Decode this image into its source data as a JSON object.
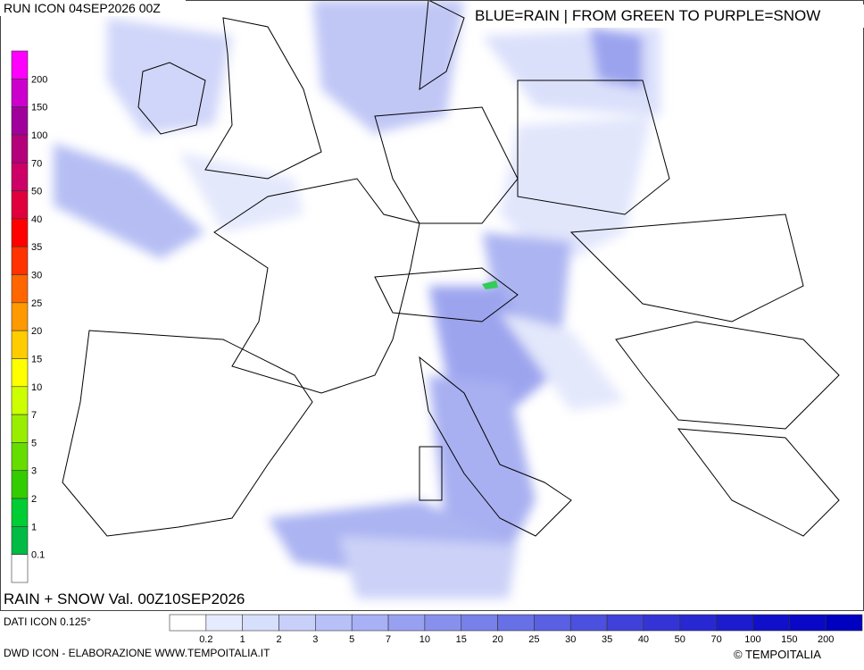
{
  "header": {
    "run": "RUN ICON 04SEP2026 00Z",
    "legend_title": "BLUE=RAIN | FROM GREEN TO PURPLE=SNOW"
  },
  "snow_scale": {
    "labels": [
      "200",
      "150",
      "100",
      "70",
      "50",
      "40",
      "35",
      "30",
      "25",
      "20",
      "15",
      "10",
      "7",
      "5",
      "3",
      "2",
      "1",
      "0.1"
    ],
    "colors": [
      "#ff00ff",
      "#cc00cc",
      "#a0009c",
      "#b4007a",
      "#cc0066",
      "#e0003c",
      "#ff0000",
      "#ff3300",
      "#ff6600",
      "#ff9900",
      "#ffcc00",
      "#ffff00",
      "#ccff00",
      "#99ee00",
      "#66dd00",
      "#33cc00",
      "#00cc33",
      "#00bb44",
      "#ffffff"
    ]
  },
  "rain_scale": {
    "labels": [
      "0.2",
      "1",
      "2",
      "3",
      "5",
      "7",
      "10",
      "15",
      "20",
      "25",
      "30",
      "35",
      "40",
      "50",
      "70",
      "100",
      "150",
      "200"
    ],
    "colors": [
      "#ffffff",
      "#e6ecff",
      "#d6dffc",
      "#c8d0fa",
      "#b8c0f8",
      "#a8b0f6",
      "#98a0f2",
      "#8890ee",
      "#7880ea",
      "#6870e6",
      "#5a60e2",
      "#4c50de",
      "#4040da",
      "#3434d6",
      "#2828d2",
      "#1c1cce",
      "#1010ca",
      "#0808c6",
      "#0000c0"
    ]
  },
  "footer": {
    "validity": "RAIN + SNOW Val. 00Z10SEP2026",
    "data_source": "DATI ICON 0.125°",
    "credit": "DWD ICON - ELABORAZIONE WWW.TEMPOITALIA.IT",
    "copyright": "© TEMPOITALIA"
  }
}
